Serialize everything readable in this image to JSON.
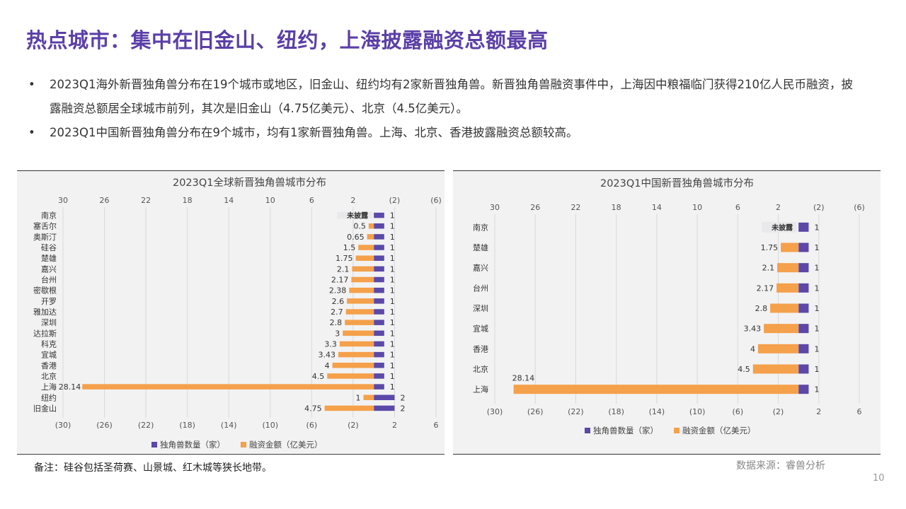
{
  "title": "热点城市：集中在旧金山、纽约，上海披露融资总额最高",
  "bullets": [
    "2023Q1海外新晋独角兽分布在19个城市或地区，旧金山、纽约均有2家新晋独角兽。新晋独角兽融资事件中，上海因中粮福临门获得210亿人民币融资，披露融资总额居全球城市前列，其次是旧金山（4.75亿美元）、北京（4.5亿美元）。",
    "2023Q1中国新晋独角兽分布在9个城市，均有1家新晋独角兽。上海、北京、香港披露融资总额较高。"
  ],
  "bullet_symbol": "•",
  "note": "备注：硅谷包括圣荷赛、山景城、红木城等狭长地带。",
  "source": "数据来源：睿兽分析",
  "page_number": "10",
  "colors": {
    "count": "#5b48a8",
    "amount": "#f5a04a",
    "undisclosed": "#e9e9ec",
    "title": "#5b3fa8"
  },
  "chart_data": [
    {
      "type": "bar",
      "title": "2023Q1全球新晋独角兽城市分布",
      "categories": [
        "南京",
        "塞舌尔",
        "奥斯汀",
        "硅谷",
        "楚雄",
        "嘉兴",
        "台州",
        "密歇根",
        "开罗",
        "雅加达",
        "深圳",
        "达拉斯",
        "科克",
        "宜城",
        "香港",
        "北京",
        "上海",
        "纽约",
        "旧金山"
      ],
      "series": [
        {
          "name": "独角兽数量（家）",
          "values": [
            1,
            1,
            1,
            1,
            1,
            1,
            1,
            1,
            1,
            1,
            1,
            1,
            1,
            1,
            1,
            1,
            1,
            2,
            2
          ]
        },
        {
          "name": "融资金额（亿美元）",
          "values": [
            null,
            0.5,
            0.65,
            1.5,
            1.75,
            2.1,
            2.17,
            2.38,
            2.6,
            2.7,
            2.8,
            3,
            3.3,
            3.43,
            4,
            4.5,
            28.14,
            1,
            4.75
          ]
        }
      ],
      "amount_labels": [
        "未披露",
        "0.5",
        "0.65",
        "1.5",
        "1.75",
        "2.1",
        "2.17",
        "2.38",
        "2.6",
        "2.7",
        "2.8",
        "3",
        "3.3",
        "3.43",
        "4",
        "4.5",
        "28.14",
        "1",
        "4.75"
      ],
      "count_labels": [
        "1",
        "1",
        "1",
        "1",
        "1",
        "1",
        "1",
        "1",
        "1",
        "1",
        "1",
        "1",
        "1",
        "1",
        "1",
        "1",
        "1",
        "2",
        "2"
      ],
      "x_ticks_top": [
        "30",
        "26",
        "22",
        "18",
        "14",
        "10",
        "6",
        "2",
        "(2)",
        "(6)"
      ],
      "x_ticks_bottom": [
        "(30)",
        "(26)",
        "(22)",
        "(18)",
        "(14)",
        "(10)",
        "(6)",
        "(2)",
        "2",
        "6"
      ],
      "tick_values": [
        -30,
        -26,
        -22,
        -18,
        -14,
        -10,
        -6,
        -2,
        2,
        6
      ],
      "xlim": [
        -30,
        6
      ],
      "legend": [
        "独角兽数量（家）",
        "融资金额（亿美元）"
      ],
      "legend_position": "bottom"
    },
    {
      "type": "bar",
      "title": "2023Q1中国新晋独角兽城市分布",
      "categories": [
        "南京",
        "楚雄",
        "嘉兴",
        "台州",
        "深圳",
        "宜城",
        "香港",
        "北京",
        "上海"
      ],
      "series": [
        {
          "name": "独角兽数量（家）",
          "values": [
            1,
            1,
            1,
            1,
            1,
            1,
            1,
            1,
            1
          ]
        },
        {
          "name": "融资金额（亿美元）",
          "values": [
            null,
            1.75,
            2.1,
            2.17,
            2.8,
            3.43,
            4,
            4.5,
            28.14
          ]
        }
      ],
      "amount_labels": [
        "未披露",
        "1.75",
        "2.1",
        "2.17",
        "2.8",
        "3.43",
        "4",
        "4.5",
        "28.14"
      ],
      "count_labels": [
        "1",
        "1",
        "1",
        "1",
        "1",
        "1",
        "1",
        "1",
        "1"
      ],
      "x_ticks_top": [
        "30",
        "26",
        "22",
        "18",
        "14",
        "10",
        "6",
        "2",
        "(2)",
        "(6)"
      ],
      "x_ticks_bottom": [
        "(30)",
        "(26)",
        "(22)",
        "(18)",
        "(14)",
        "(10)",
        "(6)",
        "(2)",
        "2",
        "6"
      ],
      "tick_values": [
        -30,
        -26,
        -22,
        -18,
        -14,
        -10,
        -6,
        -2,
        2,
        6
      ],
      "xlim": [
        -30,
        6
      ],
      "legend": [
        "独角兽数量（家）",
        "融资金额（亿美元）"
      ],
      "legend_position": "bottom"
    }
  ]
}
